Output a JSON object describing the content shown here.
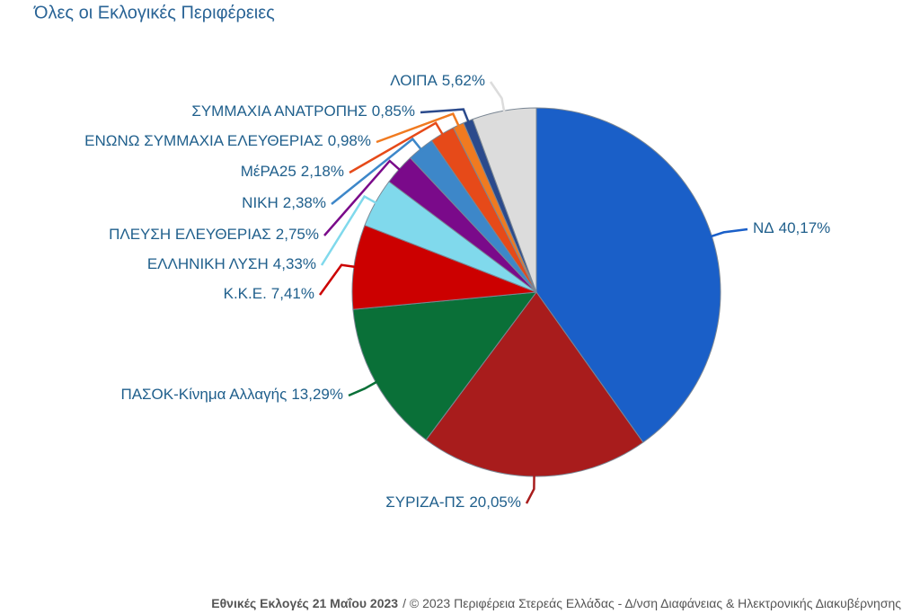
{
  "chart_data": {
    "type": "pie",
    "title": "Όλες οι Εκλογικές Περιφέρειες",
    "categories": [
      "ΝΔ",
      "ΣΥΡΙΖΑ-ΠΣ",
      "ΠΑΣΟΚ-Κίνημα Αλλαγής",
      "Κ.Κ.Ε.",
      "ΕΛΛΗΝΙΚΗ ΛΥΣΗ",
      "ΠΛΕΥΣΗ ΕΛΕΥΘΕΡΙΑΣ",
      "ΝΙΚΗ",
      "ΜέΡΑ25",
      "ΕΝΩΝΩ ΣΥΜΜΑΧΙΑ ΕΛΕΥΘΕΡΙΑΣ",
      "ΣΥΜΜΑΧΙΑ ΑΝΑΤΡΟΠΗΣ",
      "ΛΟΙΠΑ"
    ],
    "values": [
      40.17,
      20.05,
      13.29,
      7.41,
      4.33,
      2.75,
      2.38,
      2.18,
      0.98,
      0.85,
      5.62
    ],
    "value_labels": [
      "40,17%",
      "20,05%",
      "13,29%",
      "7,41%",
      "4,33%",
      "2,75%",
      "2,38%",
      "2,18%",
      "0,98%",
      "0,85%",
      "5,62%"
    ],
    "colors": [
      "#1a5fc8",
      "#a81c1c",
      "#0a7038",
      "#cc0000",
      "#80d9ec",
      "#7a0a8a",
      "#3d87c9",
      "#e64a19",
      "#f07a20",
      "#2b4a8c",
      "#dcdcdc"
    ]
  },
  "footer": {
    "event": "Εθνικές Εκλογές 21 Μαΐου 2023",
    "credit": "/ © 2023 Περιφέρεια Στερεάς Ελλάδας - Δ/νση Διαφάνειας & Ηλεκτρονικής Διακυβέρνησης"
  }
}
